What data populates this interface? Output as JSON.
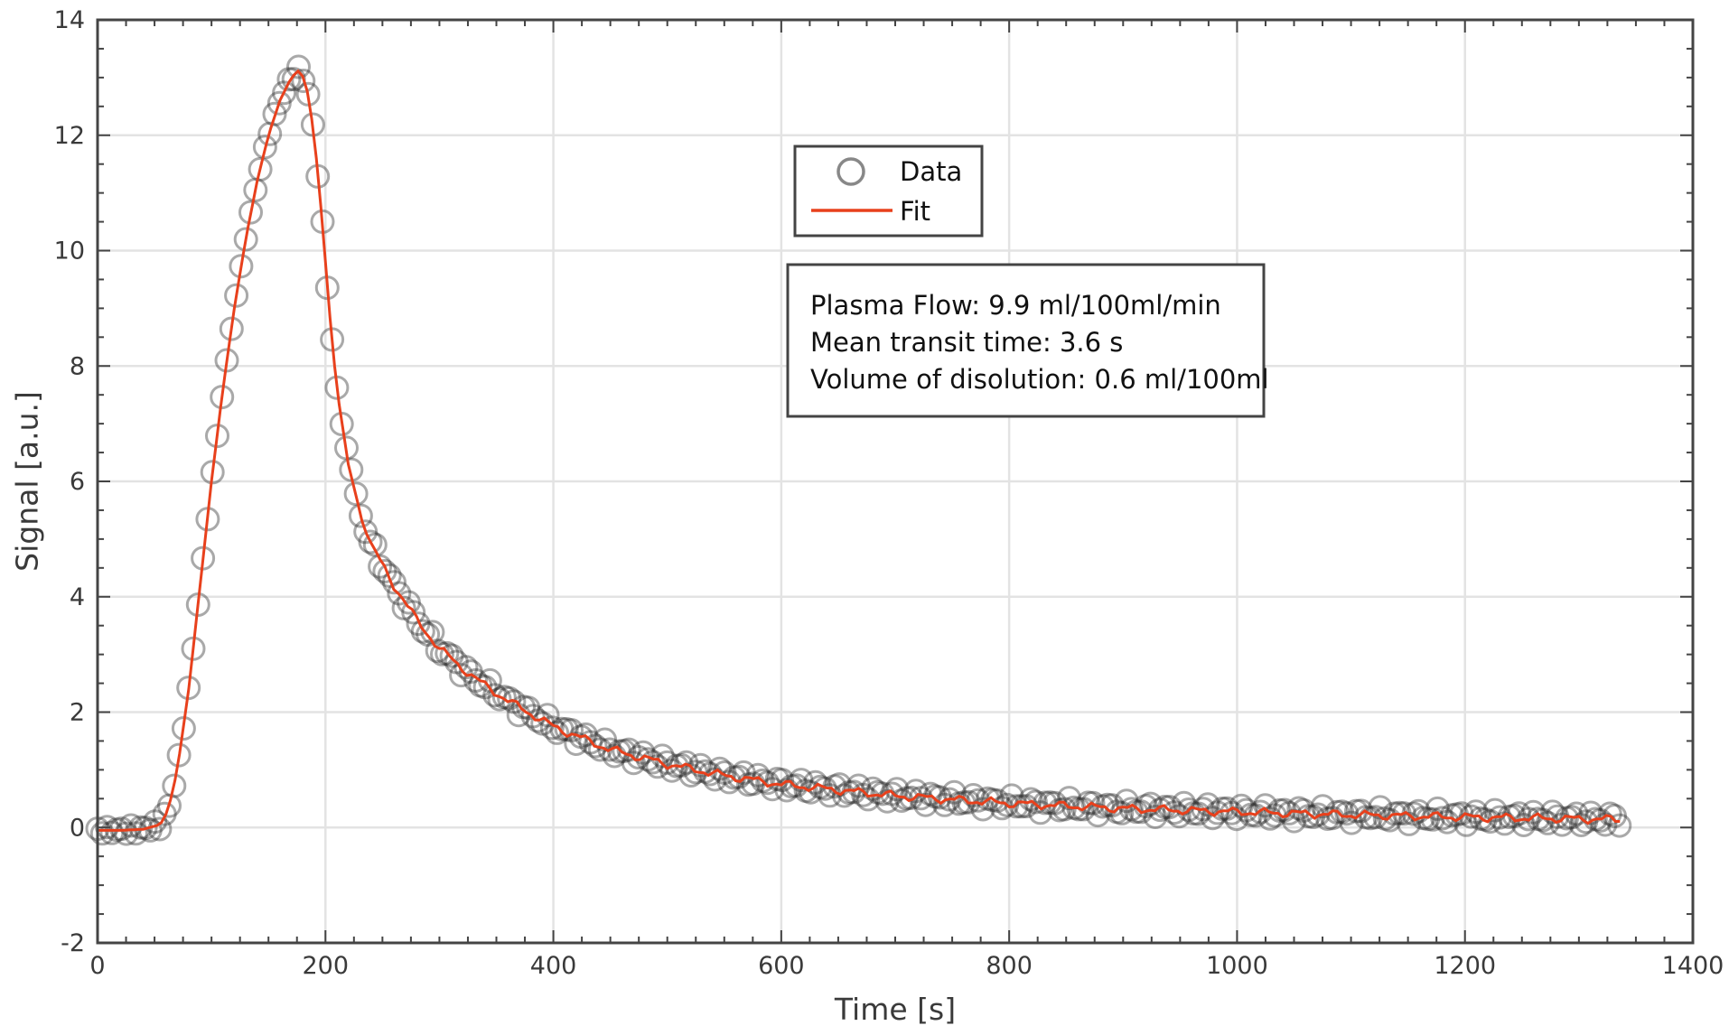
{
  "chart_data": {
    "type": "scatter",
    "xlabel": "Time [s]",
    "ylabel": "Signal [a.u.]",
    "xlim": [
      0,
      1400
    ],
    "ylim": [
      -2,
      14
    ],
    "xticks": [
      0,
      200,
      400,
      600,
      800,
      1000,
      1200,
      1400
    ],
    "yticks": [
      -2,
      0,
      2,
      4,
      6,
      8,
      10,
      12,
      14
    ],
    "grid": true,
    "legend": {
      "placement": "top-center",
      "entries": [
        {
          "label": "Data",
          "marker": "circle",
          "color": "#555555"
        },
        {
          "label": "Fit",
          "marker": "line",
          "color": "#e8401c"
        }
      ]
    },
    "annotation": [
      "Plasma Flow: 9.9 ml/100ml/min",
      "Mean transit time: 3.6 s",
      "Volume of disolution: 0.6 ml/100ml"
    ],
    "series": [
      {
        "name": "Data",
        "style": "open-circles",
        "x_start": 0,
        "x_step": 4.2,
        "x_end": 1336
      },
      {
        "name": "Fit",
        "style": "line",
        "x": [
          0,
          20,
          40,
          55,
          62,
          70,
          80,
          90,
          100,
          110,
          120,
          130,
          140,
          150,
          160,
          170,
          178,
          185,
          190,
          195,
          200,
          205,
          210,
          220,
          230,
          240,
          260,
          280,
          300,
          330,
          360,
          400,
          450,
          500,
          550,
          600,
          700,
          800,
          900,
          1000,
          1100,
          1200,
          1300,
          1336
        ],
        "y": [
          -0.05,
          -0.05,
          -0.03,
          0.05,
          0.3,
          1.0,
          2.4,
          4.2,
          6.0,
          7.6,
          9.0,
          10.2,
          11.2,
          12.0,
          12.6,
          13.0,
          13.15,
          12.7,
          12.0,
          11.0,
          9.8,
          8.6,
          7.6,
          6.3,
          5.5,
          4.9,
          4.2,
          3.6,
          3.1,
          2.6,
          2.2,
          1.75,
          1.35,
          1.1,
          0.9,
          0.75,
          0.55,
          0.42,
          0.33,
          0.27,
          0.22,
          0.18,
          0.15,
          0.14
        ]
      }
    ]
  }
}
